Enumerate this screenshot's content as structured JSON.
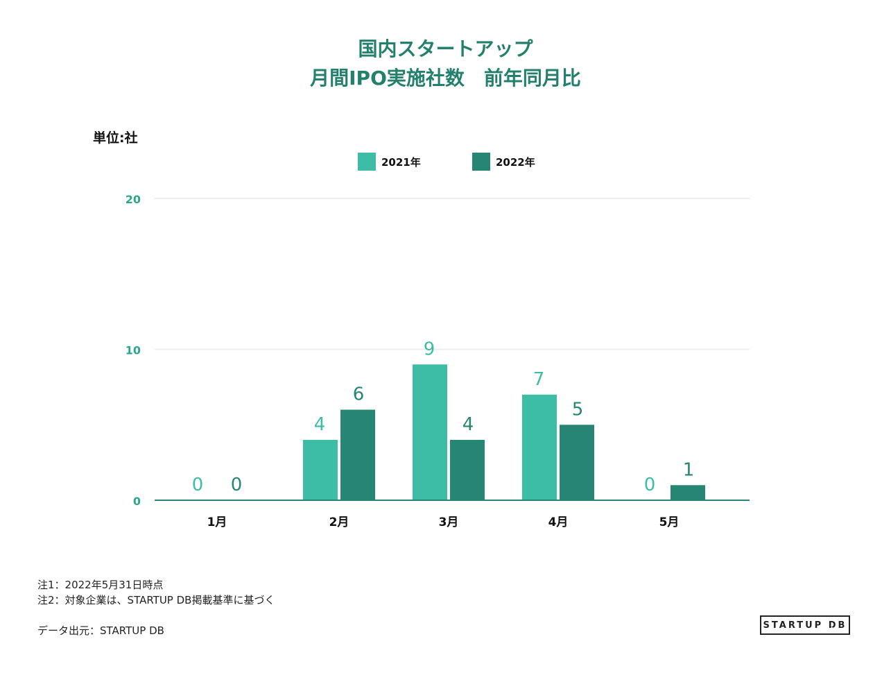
{
  "title": {
    "line1": "国内スタートアップ",
    "line2": "月間IPO実施社数　前年同月比"
  },
  "unit_label": "単位:社",
  "notes": [
    "注1：2022年5月31日時点",
    "注2：対象企業は、STARTUP DB掲載基準に基づく"
  ],
  "source": "データ出元：STARTUP DB",
  "logo_text": "STARTUP DB",
  "chart_data": {
    "type": "bar",
    "categories": [
      "1月",
      "2月",
      "3月",
      "4月",
      "5月"
    ],
    "series": [
      {
        "name": "2021年",
        "values": [
          0,
          4,
          9,
          7,
          0
        ],
        "color": "#3dbda5"
      },
      {
        "name": "2022年",
        "values": [
          0,
          6,
          4,
          5,
          1
        ],
        "color": "#268673"
      }
    ],
    "ylim": [
      0,
      20
    ],
    "yticks": [
      "0",
      "10",
      "20"
    ],
    "grid": true,
    "legend_position": "top-center"
  }
}
